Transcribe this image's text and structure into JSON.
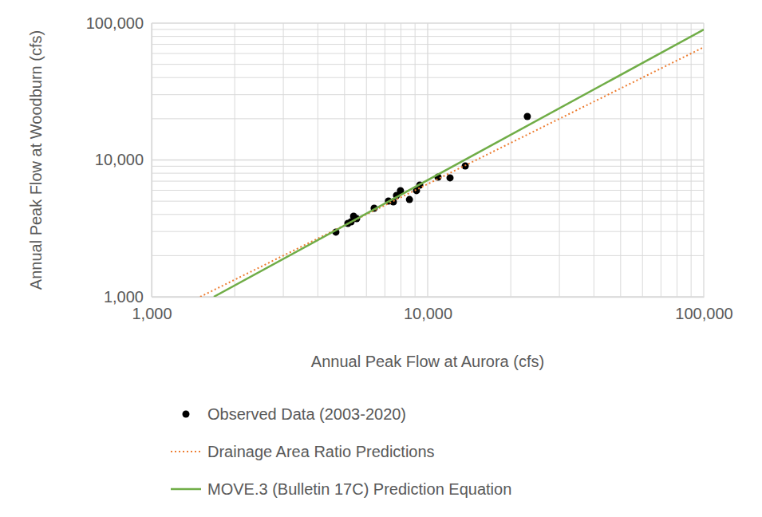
{
  "chart_data": {
    "type": "scatter",
    "log": true,
    "grid": true,
    "legend": "bottom",
    "xlabel": "Annual Peak Flow at Aurora (cfs)",
    "ylabel": "Annual Peak Flow at Woodburn (cfs)",
    "xlim": [
      1000,
      100000
    ],
    "ylim": [
      1000,
      100000
    ],
    "xticks": [
      {
        "value": 1000,
        "label": "1,000"
      },
      {
        "value": 10000,
        "label": "10,000"
      },
      {
        "value": 100000,
        "label": "100,000"
      }
    ],
    "yticks": [
      {
        "value": 1000,
        "label": "1,000"
      },
      {
        "value": 10000,
        "label": "10,000"
      },
      {
        "value": 100000,
        "label": "100,000"
      }
    ],
    "minor_xticks": [
      2000,
      3000,
      4000,
      5000,
      6000,
      7000,
      8000,
      9000,
      20000,
      30000,
      40000,
      50000,
      60000,
      70000,
      80000,
      90000
    ],
    "minor_yticks": [
      2000,
      3000,
      4000,
      5000,
      6000,
      7000,
      8000,
      9000,
      20000,
      30000,
      40000,
      50000,
      60000,
      70000,
      80000,
      90000
    ],
    "series": [
      {
        "name": "Observed Data (2003-2020)",
        "type": "scatter",
        "marker": "circle",
        "color": "#000000",
        "x": [
          4650,
          5140,
          5280,
          5390,
          5530,
          6400,
          7210,
          7510,
          7710,
          7970,
          8590,
          9110,
          9360,
          10900,
          12050,
          13680,
          22960
        ],
        "values": [
          2970,
          3440,
          3530,
          3880,
          3730,
          4440,
          5010,
          4940,
          5500,
          5970,
          5140,
          5970,
          6550,
          7490,
          7400,
          9040,
          20800
        ]
      },
      {
        "name": "Drainage Area Ratio Predictions",
        "type": "line",
        "line_style": "dotted",
        "color": "#ED7D31",
        "x": [
          1500,
          100000
        ],
        "values": [
          1000,
          66700
        ]
      },
      {
        "name": "MOVE.3 (Bulletin 17C) Prediction Equation",
        "type": "line",
        "line_style": "solid",
        "color": "#70AD47",
        "x": [
          1680,
          100000
        ],
        "values": [
          1000,
          89800
        ]
      }
    ]
  }
}
